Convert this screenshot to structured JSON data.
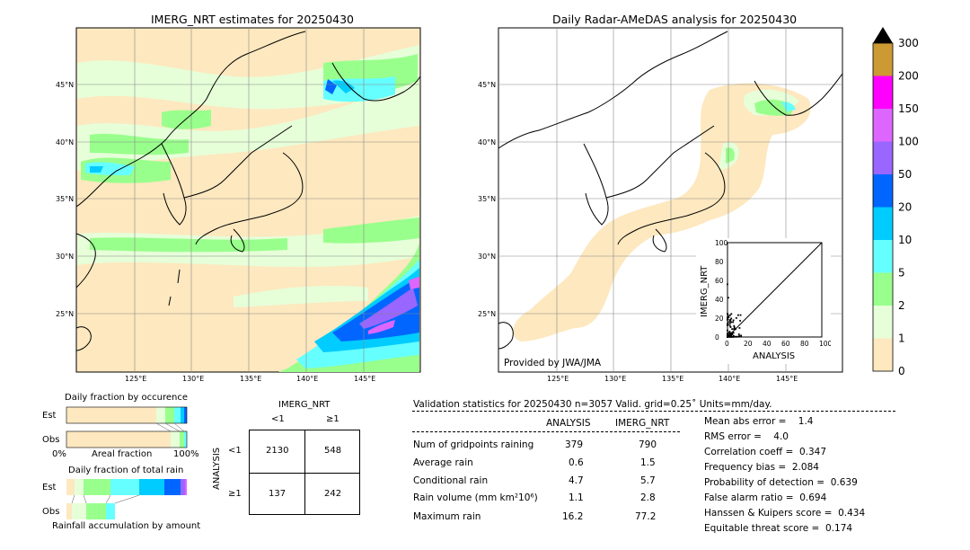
{
  "left_map": {
    "title": "IMERG_NRT estimates for 20250430",
    "lat_labels": [
      "45°N",
      "40°N",
      "35°N",
      "30°N",
      "25°N"
    ],
    "lon_labels": [
      "125°E",
      "130°E",
      "135°E",
      "140°E",
      "145°E"
    ]
  },
  "right_map": {
    "title": "Daily Radar-AMeDAS analysis for 20250430",
    "lat_labels": [
      "45°N",
      "40°N",
      "35°N",
      "30°N",
      "25°N"
    ],
    "lon_labels": [
      "125°E",
      "130°E",
      "135°E",
      "140°E",
      "145°E"
    ],
    "credit": "Provided by JWA/JMA"
  },
  "colorbar": {
    "levels": [
      "0",
      "1",
      "2",
      "5",
      "10",
      "20",
      "50",
      "100",
      "150",
      "200",
      "300"
    ],
    "colors": [
      "#fde8bf",
      "#e6ffd9",
      "#99ff8c",
      "#66ffff",
      "#00ccff",
      "#0066ff",
      "#9966ff",
      "#dd66ff",
      "#ff00ff",
      "#cc9933"
    ]
  },
  "occurrence": {
    "title": "Daily fraction by occurence",
    "row_est": "Est",
    "row_obs": "Obs",
    "axis_left": "0%",
    "axis_mid": "Areal fraction",
    "axis_right": "100%"
  },
  "total_rain": {
    "title": "Daily fraction of total rain",
    "row_est": "Est",
    "row_obs": "Obs",
    "footer": "Rainfall accumulation by amount"
  },
  "contingency": {
    "col_title": "IMERG_NRT",
    "col_lt": "<1",
    "col_ge": "≥1",
    "row_title": "ANALYSIS",
    "row_lt": "<1",
    "row_ge": "≥1",
    "a": "2130",
    "b": "548",
    "c": "137",
    "d": "242"
  },
  "scatter": {
    "xlabel": "ANALYSIS",
    "ylabel": "IMERG_NRT",
    "ticks": [
      "0",
      "20",
      "40",
      "60",
      "80",
      "100"
    ]
  },
  "validation": {
    "header": "Validation statistics for 20250430  n=3057 Valid. grid=0.25˚ Units=mm/day.",
    "col_analysis": "ANALYSIS",
    "col_imerg": "IMERG_NRT",
    "rows": [
      {
        "label": "Num of gridpoints raining",
        "analysis": "379",
        "imerg": "790"
      },
      {
        "label": "Average rain",
        "analysis": "0.6",
        "imerg": "1.5"
      },
      {
        "label": "Conditional rain",
        "analysis": "4.7",
        "imerg": "5.7"
      },
      {
        "label": "Rain volume (mm km²10⁶)",
        "analysis": "1.1",
        "imerg": "2.8"
      },
      {
        "label": "Maximum rain",
        "analysis": "16.2",
        "imerg": "77.2"
      }
    ],
    "scores": [
      "Mean abs error =    1.4",
      "RMS error =    4.0",
      "Correlation coeff =  0.347",
      "Frequency bias =  2.084",
      "Probability of detection =  0.639",
      "False alarm ratio =  0.694",
      "Hanssen & Kuipers score =  0.434",
      "Equitable threat score =  0.174"
    ]
  }
}
